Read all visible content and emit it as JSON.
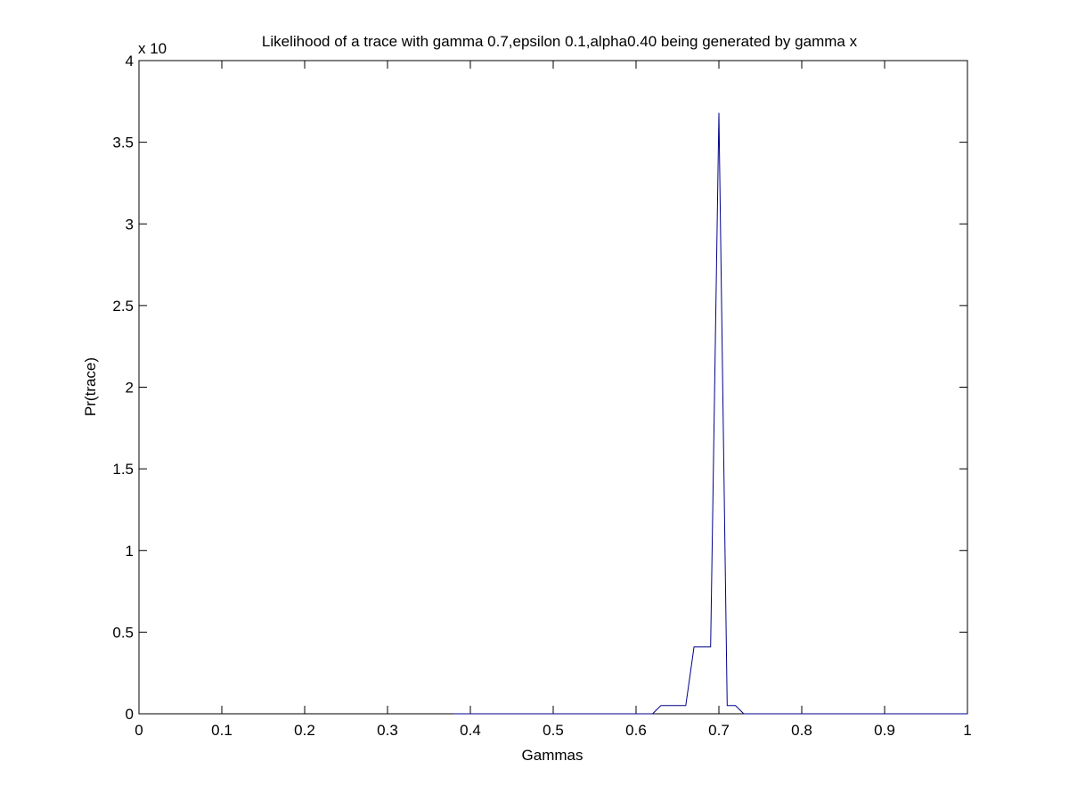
{
  "chart_data": {
    "type": "line",
    "title": "Likelihood of a trace with gamma 0.7,epsilon 0.1,alpha0.40 being generated by gamma x",
    "exponent_label": "x 10",
    "xlabel": "Gammas",
    "ylabel": "Pr(trace)",
    "xlim": [
      0,
      1
    ],
    "ylim": [
      0,
      4
    ],
    "x_ticks": [
      0,
      0.1,
      0.2,
      0.3,
      0.4,
      0.5,
      0.6,
      0.7,
      0.8,
      0.9,
      1
    ],
    "x_tick_labels": [
      "0",
      "0.1",
      "0.2",
      "0.3",
      "0.4",
      "0.5",
      "0.6",
      "0.7",
      "0.8",
      "0.9",
      "1"
    ],
    "y_ticks": [
      0,
      0.5,
      1,
      1.5,
      2,
      2.5,
      3,
      3.5,
      4
    ],
    "y_tick_labels": [
      "0",
      "0.5",
      "1",
      "1.5",
      "2",
      "2.5",
      "3",
      "3.5",
      "4"
    ],
    "grid": false,
    "series": [
      {
        "color": "#00008b",
        "x": [
          0.38,
          0.39,
          0.4,
          0.41,
          0.42,
          0.43,
          0.44,
          0.45,
          0.46,
          0.47,
          0.48,
          0.49,
          0.5,
          0.51,
          0.52,
          0.53,
          0.54,
          0.55,
          0.56,
          0.57,
          0.58,
          0.59,
          0.6,
          0.61,
          0.62,
          0.63,
          0.64,
          0.65,
          0.66,
          0.67,
          0.68,
          0.69,
          0.7,
          0.71,
          0.72,
          0.73,
          0.74,
          0.75,
          0.76,
          0.77,
          0.78,
          0.79,
          0.8,
          0.81,
          0.82,
          0.83,
          0.84,
          0.85,
          0.86,
          0.87,
          0.88,
          0.89,
          0.9,
          0.91,
          0.92,
          0.93,
          0.94,
          0.95,
          0.96,
          0.97,
          0.98,
          0.99,
          1.0
        ],
        "y": [
          0,
          0,
          0,
          0,
          0,
          0,
          0,
          0,
          0,
          0,
          0,
          0,
          0,
          0,
          0,
          0,
          0,
          0,
          0,
          0,
          0,
          0,
          0,
          0,
          0,
          0.05,
          0.05,
          0.05,
          0.05,
          0.41,
          0.41,
          0.41,
          3.68,
          0.05,
          0.05,
          0,
          0,
          0,
          0,
          0,
          0,
          0,
          0,
          0,
          0,
          0,
          0,
          0,
          0,
          0,
          0,
          0,
          0,
          0,
          0,
          0,
          0,
          0,
          0,
          0,
          0,
          0,
          0
        ]
      }
    ]
  }
}
